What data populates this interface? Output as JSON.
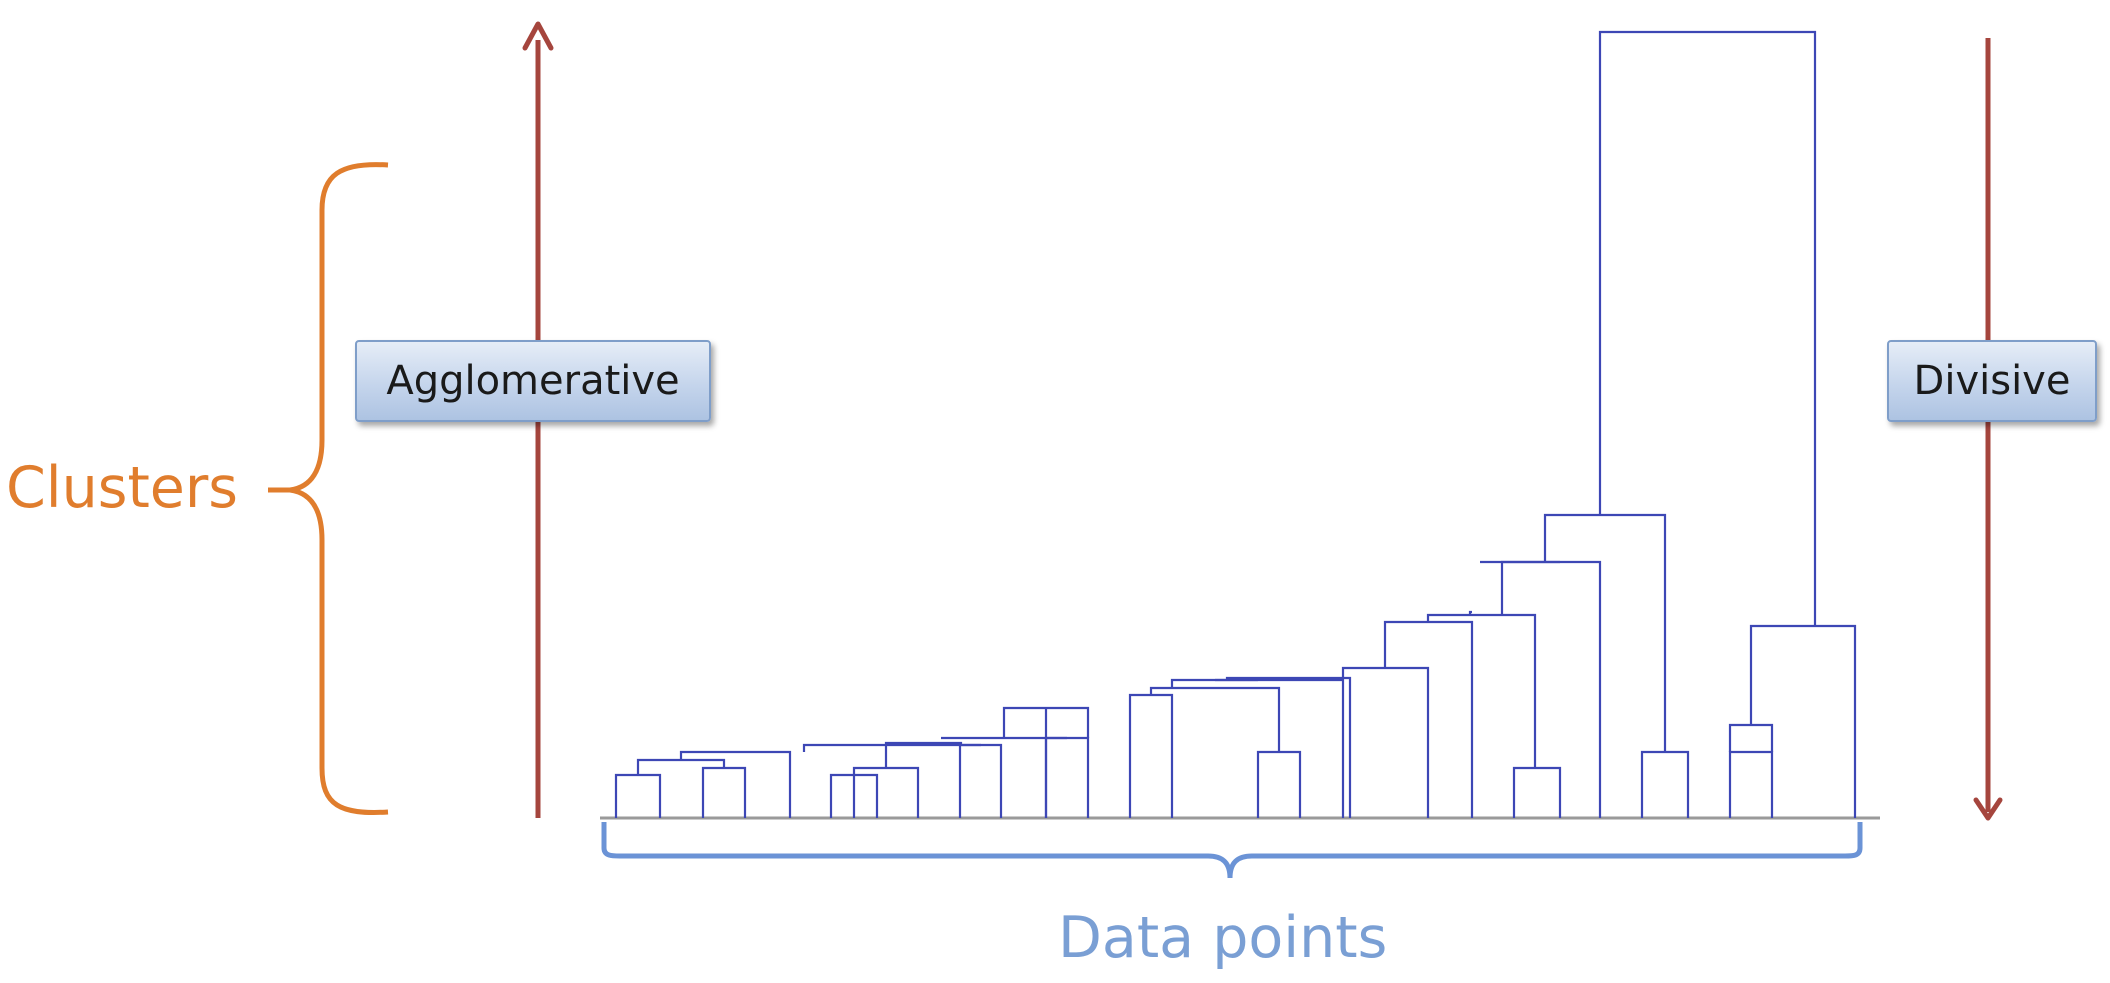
{
  "labels": {
    "clusters": "Clusters",
    "agglomerative": "Agglomerative",
    "divisive": "Divisive",
    "data_points": "Data points"
  },
  "colors": {
    "clusters_text": "#e07d2d",
    "brace_orange": "#e07d2d",
    "arrow_red": "#a5453d",
    "dendrogram_line": "#3d47b5",
    "axis_gray": "#9a9a9a",
    "data_points_text": "#7a9fd4",
    "brace_blue": "#6b93d6"
  },
  "dendrogram": {
    "leaf_count": 29,
    "root_split": "large cluster of leaves 1-26 vs small cluster of leaves 27-29"
  }
}
